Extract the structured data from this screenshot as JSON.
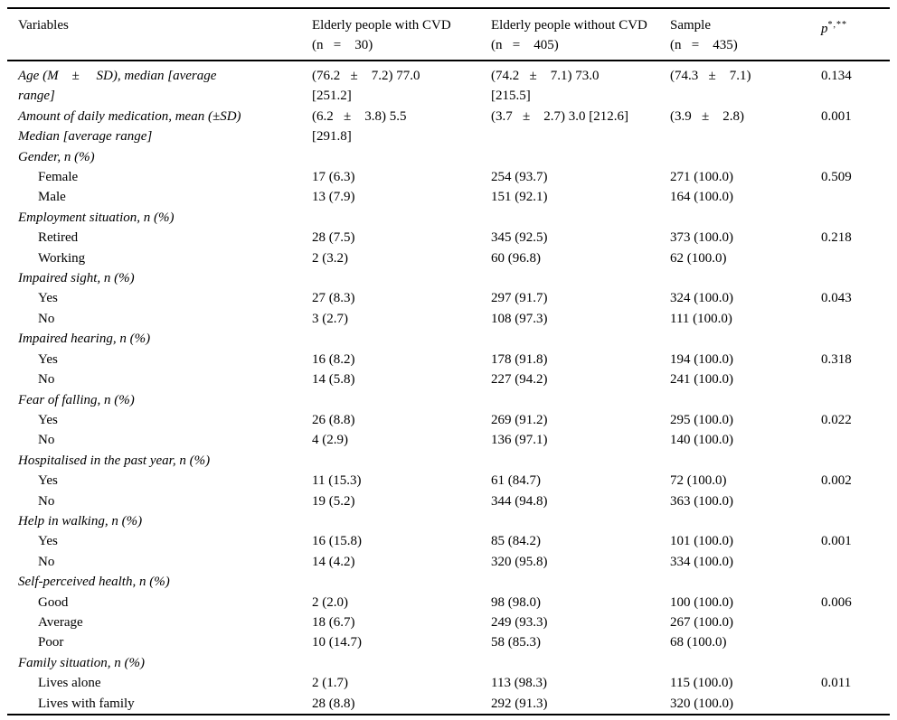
{
  "table": {
    "header": {
      "variables": "Variables",
      "with_cvd": "Elderly people with CVD\n(n   =    30)",
      "without_cvd": "Elderly people without CVD\n(n   =    405)",
      "sample": "Sample\n(n   =    435)",
      "p": {
        "base": "p",
        "sup": "*,**"
      }
    },
    "rows": [
      {
        "type": "measure",
        "label": "Age (M    ±     SD), median [average\nrange]",
        "c1": "(76.2   ±    7.2) 77.0\n[251.2]",
        "c2": "(74.2   ±    7.1) 73.0\n[215.5]",
        "c3": "(74.3   ±    7.1)",
        "p": "0.134"
      },
      {
        "type": "measure",
        "label": "Amount of daily medication, mean (±SD)\nMedian [average range]",
        "c1": "(6.2   ±    3.8) 5.5\n[291.8]",
        "c2": "(3.7   ±    2.7) 3.0 [212.6]",
        "c3": "(3.9   ±    2.8)",
        "p": "0.001"
      },
      {
        "type": "group",
        "label": "Gender, n (%)",
        "c1": "",
        "c2": "",
        "c3": "",
        "p": ""
      },
      {
        "type": "sub",
        "label": "Female",
        "c1": "17 (6.3)",
        "c2": "254 (93.7)",
        "c3": "271 (100.0)",
        "p": "0.509"
      },
      {
        "type": "sub",
        "label": "Male",
        "c1": "13 (7.9)",
        "c2": "151 (92.1)",
        "c3": "164 (100.0)",
        "p": ""
      },
      {
        "type": "group",
        "label": "Employment situation, n (%)",
        "c1": "",
        "c2": "",
        "c3": "",
        "p": ""
      },
      {
        "type": "sub",
        "label": "Retired",
        "c1": "28 (7.5)",
        "c2": "345 (92.5)",
        "c3": "373 (100.0)",
        "p": "0.218"
      },
      {
        "type": "sub",
        "label": "Working",
        "c1": "2 (3.2)",
        "c2": "60 (96.8)",
        "c3": "62 (100.0)",
        "p": ""
      },
      {
        "type": "group",
        "label": "Impaired sight, n (%)",
        "c1": "",
        "c2": "",
        "c3": "",
        "p": ""
      },
      {
        "type": "sub",
        "label": "Yes",
        "c1": "27 (8.3)",
        "c2": "297 (91.7)",
        "c3": "324 (100.0)",
        "p": "0.043"
      },
      {
        "type": "sub",
        "label": "No",
        "c1": "3 (2.7)",
        "c2": "108 (97.3)",
        "c3": "111 (100.0)",
        "p": ""
      },
      {
        "type": "group",
        "label": "Impaired hearing, n (%)",
        "c1": "",
        "c2": "",
        "c3": "",
        "p": ""
      },
      {
        "type": "sub",
        "label": "Yes",
        "c1": "16 (8.2)",
        "c2": "178 (91.8)",
        "c3": "194 (100.0)",
        "p": "0.318"
      },
      {
        "type": "sub",
        "label": "No",
        "c1": "14 (5.8)",
        "c2": "227 (94.2)",
        "c3": "241 (100.0)",
        "p": ""
      },
      {
        "type": "group",
        "label": "Fear of falling, n (%)",
        "c1": "",
        "c2": "",
        "c3": "",
        "p": ""
      },
      {
        "type": "sub",
        "label": "Yes",
        "c1": "26 (8.8)",
        "c2": "269 (91.2)",
        "c3": "295 (100.0)",
        "p": "0.022"
      },
      {
        "type": "sub",
        "label": "No",
        "c1": "4 (2.9)",
        "c2": "136 (97.1)",
        "c3": "140 (100.0)",
        "p": ""
      },
      {
        "type": "group",
        "label": "Hospitalised in the past year, n (%)",
        "c1": "",
        "c2": "",
        "c3": "",
        "p": ""
      },
      {
        "type": "sub",
        "label": "Yes",
        "c1": "11 (15.3)",
        "c2": "61 (84.7)",
        "c3": "72 (100.0)",
        "p": "0.002"
      },
      {
        "type": "sub",
        "label": "No",
        "c1": "19 (5.2)",
        "c2": "344 (94.8)",
        "c3": "363 (100.0)",
        "p": ""
      },
      {
        "type": "group",
        "label": "Help in walking, n (%)",
        "c1": "",
        "c2": "",
        "c3": "",
        "p": ""
      },
      {
        "type": "sub",
        "label": "Yes",
        "c1": "16 (15.8)",
        "c2": "85 (84.2)",
        "c3": "101 (100.0)",
        "p": "0.001"
      },
      {
        "type": "sub",
        "label": "No",
        "c1": "14 (4.2)",
        "c2": "320 (95.8)",
        "c3": "334 (100.0)",
        "p": ""
      },
      {
        "type": "group",
        "label": "Self-perceived health, n (%)",
        "c1": "",
        "c2": "",
        "c3": "",
        "p": ""
      },
      {
        "type": "sub",
        "label": "Good",
        "c1": "2 (2.0)",
        "c2": "98 (98.0)",
        "c3": "100 (100.0)",
        "p": "0.006"
      },
      {
        "type": "sub",
        "label": "Average",
        "c1": "18 (6.7)",
        "c2": "249 (93.3)",
        "c3": "267 (100.0)",
        "p": ""
      },
      {
        "type": "sub",
        "label": "Poor",
        "c1": "10 (14.7)",
        "c2": "58 (85.3)",
        "c3": "68 (100.0)",
        "p": ""
      },
      {
        "type": "group",
        "label": "Family situation, n (%)",
        "c1": "",
        "c2": "",
        "c3": "",
        "p": ""
      },
      {
        "type": "sub",
        "label": "Lives alone",
        "c1": "2 (1.7)",
        "c2": "113 (98.3)",
        "c3": "115 (100.0)",
        "p": "0.011"
      },
      {
        "type": "sub",
        "label": "Lives with family",
        "c1": "28 (8.8)",
        "c2": "292 (91.3)",
        "c3": "320 (100.0)",
        "p": ""
      }
    ]
  }
}
